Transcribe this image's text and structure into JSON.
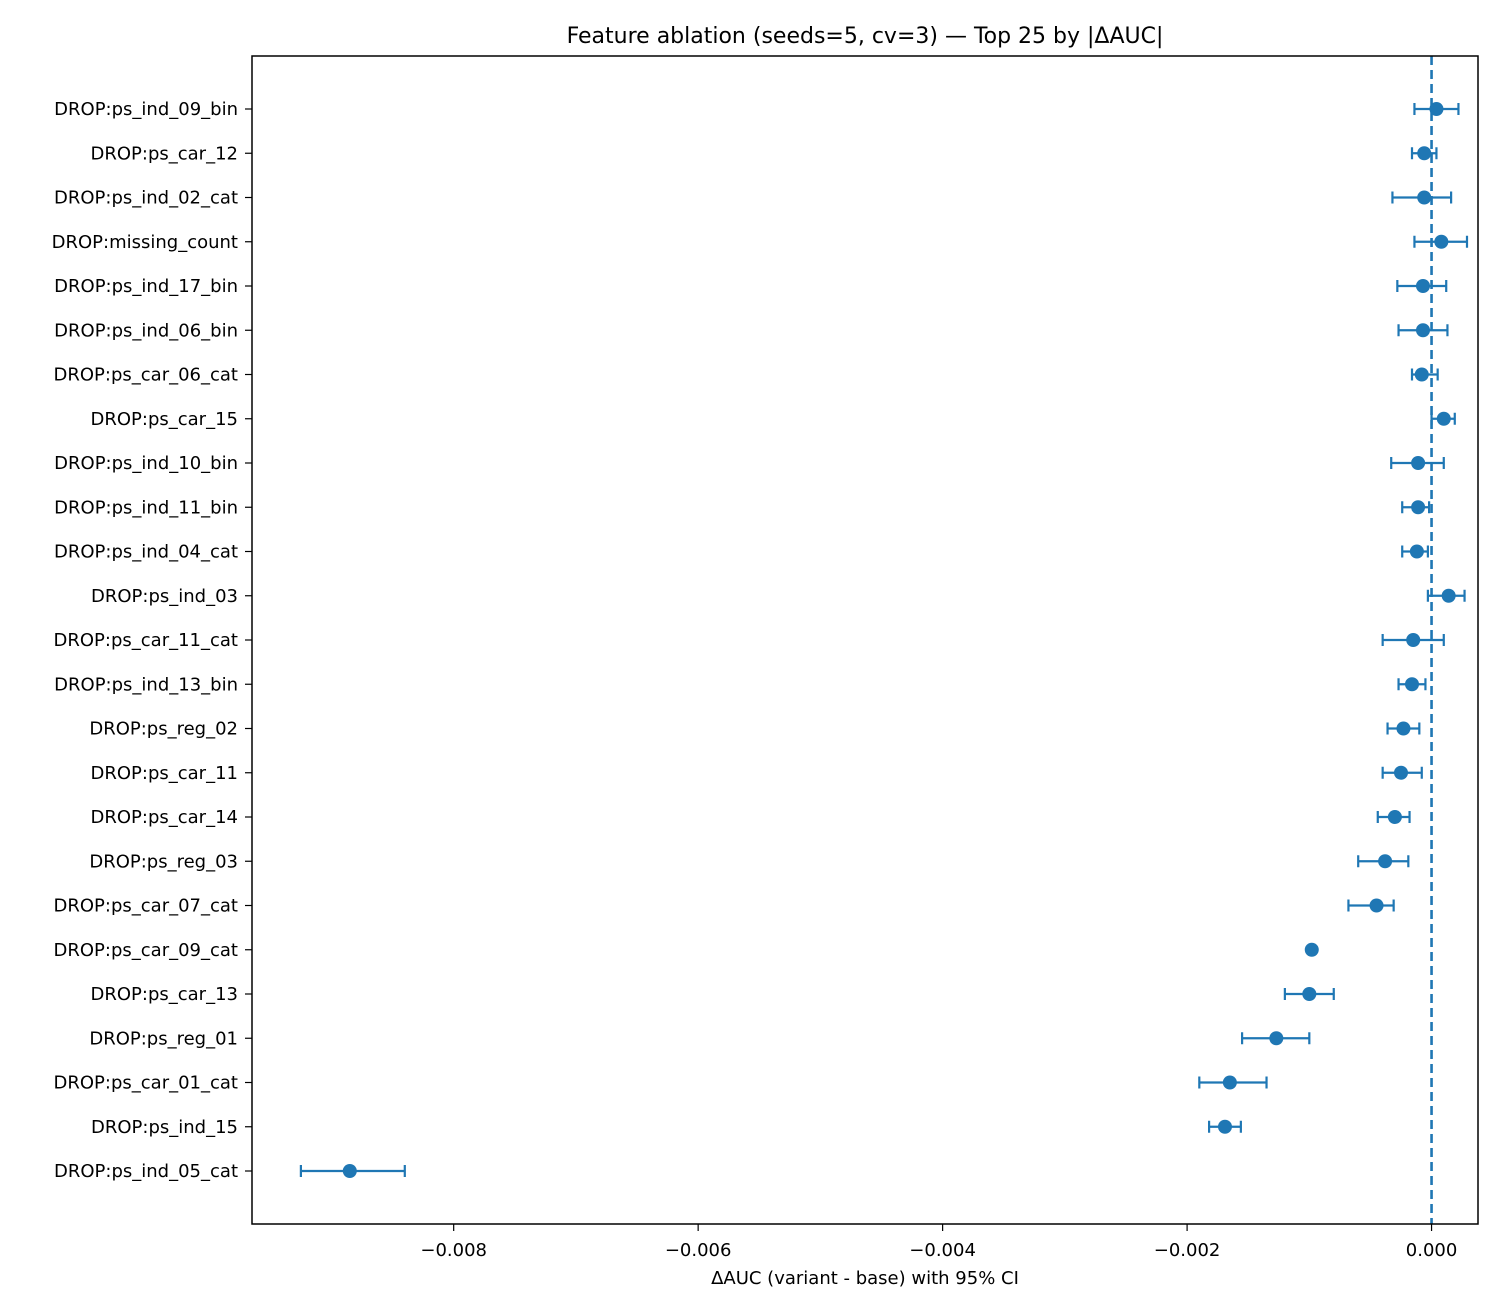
{
  "chart_data": {
    "type": "scatter",
    "title": "Feature ablation (seeds=5, cv=3) — Top 25 by |ΔAUC|",
    "xlabel": "ΔAUC (variant - base) with 95% CI",
    "ylabel": "",
    "xlim": [
      -0.00965,
      0.00038
    ],
    "xticks": [
      -0.008,
      -0.006,
      -0.004,
      -0.002,
      0.0
    ],
    "xtick_labels": [
      "−0.008",
      "−0.006",
      "−0.004",
      "−0.002",
      "0.000"
    ],
    "reference_line": {
      "x": 0.0,
      "style": "dashed"
    },
    "grid": false,
    "color": "#1f77b4",
    "points": [
      {
        "label": "DROP:ps_ind_09_bin",
        "value": 4e-05,
        "ci_low": -0.00014,
        "ci_high": 0.00022
      },
      {
        "label": "DROP:ps_car_12",
        "value": -6e-05,
        "ci_low": -0.00016,
        "ci_high": 4e-05
      },
      {
        "label": "DROP:ps_ind_02_cat",
        "value": -6e-05,
        "ci_low": -0.00032,
        "ci_high": 0.00016
      },
      {
        "label": "DROP:missing_count",
        "value": 8e-05,
        "ci_low": -0.00014,
        "ci_high": 0.00029
      },
      {
        "label": "DROP:ps_ind_17_bin",
        "value": -7e-05,
        "ci_low": -0.00028,
        "ci_high": 0.00012
      },
      {
        "label": "DROP:ps_ind_06_bin",
        "value": -7e-05,
        "ci_low": -0.00027,
        "ci_high": 0.00013
      },
      {
        "label": "DROP:ps_car_06_cat",
        "value": -8e-05,
        "ci_low": -0.00016,
        "ci_high": 5e-05
      },
      {
        "label": "DROP:ps_car_15",
        "value": 0.0001,
        "ci_low": 0.0,
        "ci_high": 0.00019
      },
      {
        "label": "DROP:ps_ind_10_bin",
        "value": -0.00011,
        "ci_low": -0.00033,
        "ci_high": 0.0001
      },
      {
        "label": "DROP:ps_ind_11_bin",
        "value": -0.00011,
        "ci_low": -0.00024,
        "ci_high": -2e-05
      },
      {
        "label": "DROP:ps_ind_04_cat",
        "value": -0.00012,
        "ci_low": -0.00024,
        "ci_high": -3e-05
      },
      {
        "label": "DROP:ps_ind_03",
        "value": 0.00014,
        "ci_low": -3e-05,
        "ci_high": 0.00027
      },
      {
        "label": "DROP:ps_car_11_cat",
        "value": -0.00015,
        "ci_low": -0.0004,
        "ci_high": 0.0001
      },
      {
        "label": "DROP:ps_ind_13_bin",
        "value": -0.00016,
        "ci_low": -0.00027,
        "ci_high": -5e-05
      },
      {
        "label": "DROP:ps_reg_02",
        "value": -0.00023,
        "ci_low": -0.00036,
        "ci_high": -0.0001
      },
      {
        "label": "DROP:ps_car_11",
        "value": -0.00025,
        "ci_low": -0.0004,
        "ci_high": -8e-05
      },
      {
        "label": "DROP:ps_car_14",
        "value": -0.0003,
        "ci_low": -0.00044,
        "ci_high": -0.00018
      },
      {
        "label": "DROP:ps_reg_03",
        "value": -0.00038,
        "ci_low": -0.0006,
        "ci_high": -0.00019
      },
      {
        "label": "DROP:ps_car_07_cat",
        "value": -0.00045,
        "ci_low": -0.00068,
        "ci_high": -0.00031
      },
      {
        "label": "DROP:ps_car_09_cat",
        "value": -0.00098,
        "ci_low": -0.001,
        "ci_high": -0.00096
      },
      {
        "label": "DROP:ps_car_13",
        "value": -0.001,
        "ci_low": -0.0012,
        "ci_high": -0.0008
      },
      {
        "label": "DROP:ps_reg_01",
        "value": -0.00127,
        "ci_low": -0.00155,
        "ci_high": -0.001
      },
      {
        "label": "DROP:ps_car_01_cat",
        "value": -0.00165,
        "ci_low": -0.0019,
        "ci_high": -0.00135
      },
      {
        "label": "DROP:ps_ind_15",
        "value": -0.00169,
        "ci_low": -0.00182,
        "ci_high": -0.00156
      },
      {
        "label": "DROP:ps_ind_05_cat",
        "value": -0.00885,
        "ci_low": -0.00925,
        "ci_high": -0.0084
      }
    ]
  }
}
